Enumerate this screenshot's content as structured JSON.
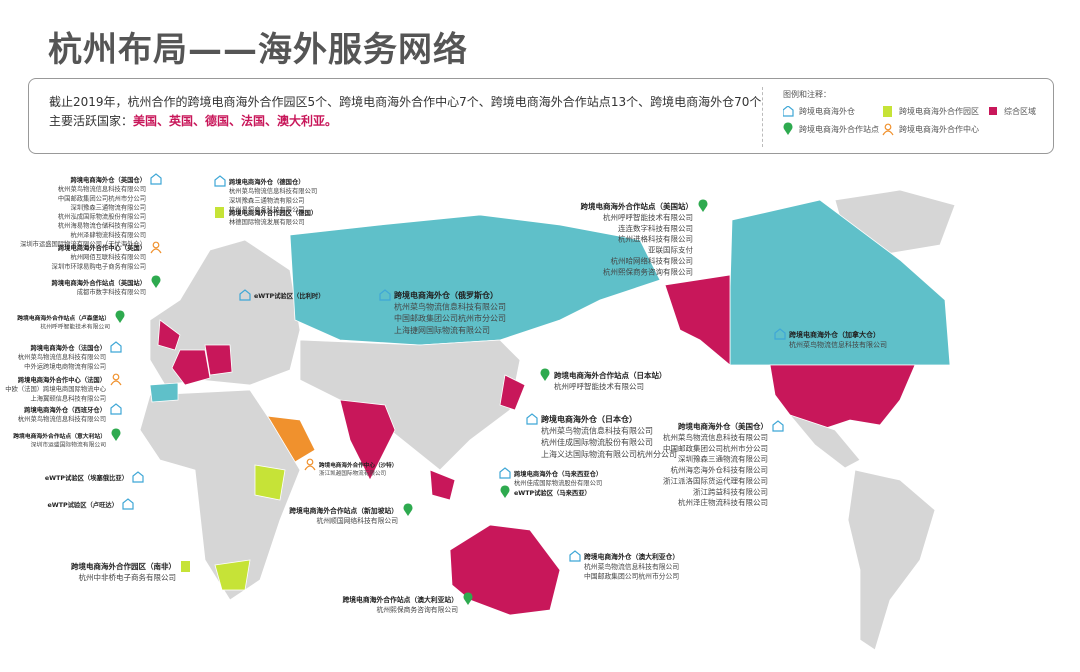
{
  "header": {
    "title": "杭州布局——海外服务网络"
  },
  "summary": {
    "line1": "截止2019年，杭州合作的跨境电商海外合作园区5个、跨境电商海外合作中心7个、跨境电商海外合作站点13个、跨境电商海外仓70个",
    "line2_prefix": "主要活跃国家：",
    "countries": "美国、英国、德国、法国、澳大利亚。"
  },
  "legend": {
    "title": "图例和注释：",
    "items": [
      "跨境电商海外仓",
      "跨境电商海外合作园区",
      "综合区域",
      "跨境电商海外合作站点",
      "跨境电商海外合作中心"
    ]
  },
  "callouts": [
    {
      "title": "跨境电商海外仓（英国仓）",
      "lines": [
        "杭州菜鸟物流信息科技有限公司",
        "中国邮政集团公司杭州市分公司",
        "深圳豫森三通物流有限公司",
        "杭州泓成国际物流股份有限公司",
        "杭州海易物流仓储科技有限公司",
        "杭州泽肆物流科技有限公司",
        "深圳市运盛国际物流有限公司（无忧海外仓）"
      ]
    },
    {
      "title": "跨境电商海外合作中心（英国）",
      "lines": [
        "杭州网佰互联科技有限公司",
        "深圳市环球易购电子商务有限公司"
      ]
    },
    {
      "title": "跨境电商海外合作站点（英国站）",
      "lines": [
        "成都市数字科技有限公司"
      ]
    },
    {
      "title": "跨境电商海外合作站点（卢森堡站）",
      "lines": [
        "杭州呼呼智能技术有限公司"
      ]
    },
    {
      "title": "跨境电商海外仓（法国仓）",
      "lines": [
        "杭州菜鸟物流信息科技有限公司",
        "中外运跨境电商物流有限公司"
      ]
    },
    {
      "title": "跨境电商海外合作中心（法国）",
      "lines": [
        "中欧（法国）跨境电商国际物流中心",
        "上海翼颐信息科技有限公司"
      ]
    },
    {
      "title": "跨境电商海外仓（西班牙仓）",
      "lines": [
        "杭州菜鸟物流信息科技有限公司"
      ]
    },
    {
      "title": "跨境电商海外合作站点（意大利站）",
      "lines": [
        "深圳市运盛国际物流有限公司"
      ]
    },
    {
      "title": "eWTP试验区（埃塞俄比亚）",
      "lines": []
    },
    {
      "title": "eWTP试验区（卢旺达）",
      "lines": []
    },
    {
      "title": "跨境电商海外仓（德国仓）",
      "lines": [
        "杭州菜鸟物流信息科技有限公司",
        "深圳豫森三通物流有限公司",
        "杭州易恒商务科技有限公司"
      ]
    },
    {
      "title": "跨境电商海外合作园区（德国）",
      "lines": [
        "林德国际物流发展有限公司"
      ]
    },
    {
      "title": "eWTP试验区（比利时）",
      "lines": []
    },
    {
      "title": "跨境电商海外合作园区（南非）",
      "lines": [
        "杭州中非桥电子商务有限公司"
      ]
    },
    {
      "title": "跨境电商海外仓（俄罗斯仓）",
      "lines": [
        "杭州菜鸟物流信息科技有限公司",
        "中国邮政集团公司杭州市分公司",
        "上海捷网国际物流有限公司"
      ]
    },
    {
      "title": "跨境电商海外合作中心（沙特）",
      "lines": [
        "浙江凯越国际物流有限公司"
      ]
    },
    {
      "title": "跨境电商海外合作站点（日本站）",
      "lines": [
        "杭州呼呼智能技术有限公司"
      ]
    },
    {
      "title": "跨境电商海外仓（日本仓）",
      "lines": [
        "杭州菜鸟物流信息科技有限公司",
        "杭州佳成国际物流股份有限公司",
        "上海义达国际物流有限公司杭州分公司"
      ]
    },
    {
      "title": "跨境电商海外仓（马来西亚仓）",
      "lines": [
        "杭州佳成国际物流股份有限公司"
      ]
    },
    {
      "title": "eWTP试验区（马来西亚）",
      "lines": []
    },
    {
      "title": "跨境电商海外合作站点（新加坡站）",
      "lines": [
        "杭州顺国网络科技有限公司"
      ]
    },
    {
      "title": "跨境电商海外仓（澳大利亚仓）",
      "lines": [
        "杭州菜鸟物流信息科技有限公司",
        "中国邮政集团公司杭州市分公司"
      ]
    },
    {
      "title": "跨境电商海外合作站点（澳大利亚站）",
      "lines": [
        "杭州熙保商务咨询有限公司"
      ]
    },
    {
      "title": "跨境电商海外合作站点（美国站）",
      "lines": [
        "杭州呼呼智能技术有限公司",
        "连连数字科技有限公司",
        "杭州进格科技有限公司",
        "亚联国际支付",
        "杭州哈网络科技有限公司",
        "杭州熙保商务咨询有限公司"
      ]
    },
    {
      "title": "跨境电商海外仓（加拿大仓）",
      "lines": [
        "杭州菜鸟物流信息科技有限公司"
      ]
    },
    {
      "title": "跨境电商海外仓（美国仓）",
      "lines": [
        "杭州菜鸟物流信息科技有限公司",
        "中国邮政集团公司杭州市分公司",
        "深圳豫森三通物流有限公司",
        "杭州海恋海外仓科技有限公司",
        "浙江派洛国际货运代理有限公司",
        "浙江跨益科技有限公司",
        "杭州泽庄物流科技有限公司"
      ]
    }
  ]
}
